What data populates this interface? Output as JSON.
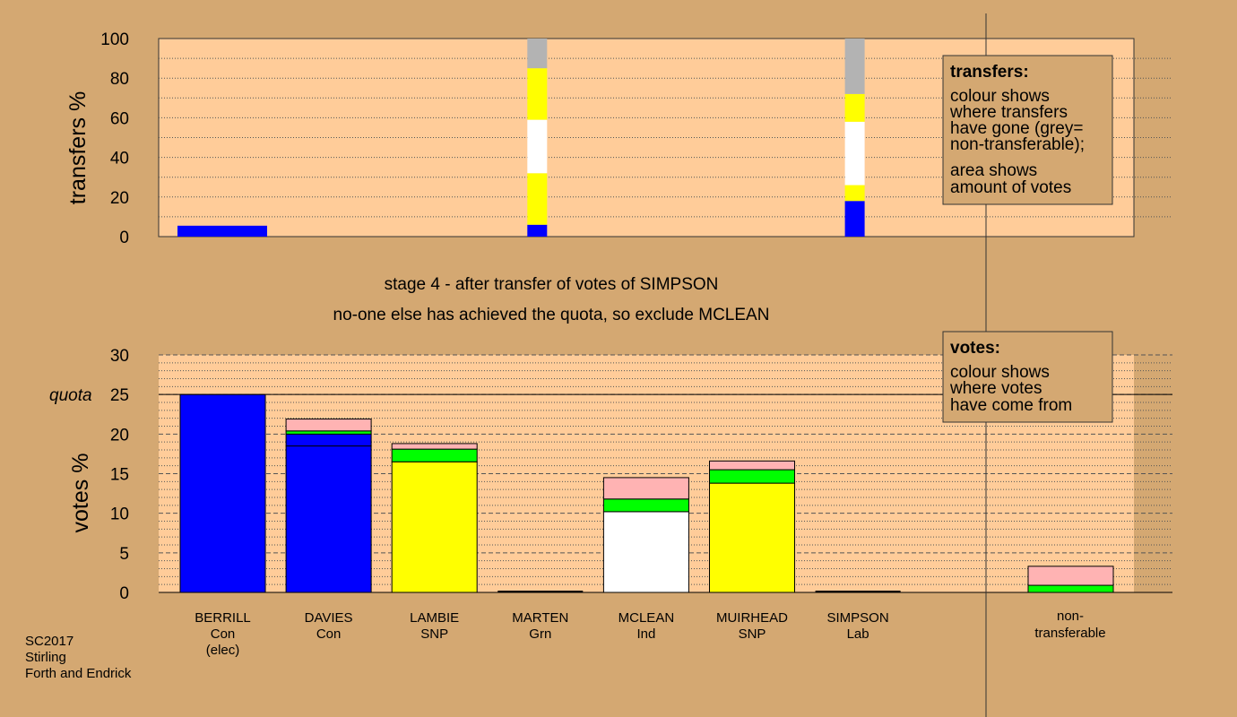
{
  "colors": {
    "background": "#d4a872",
    "plot": "#ffcc99",
    "Con": "#0000ff",
    "SNP": "#ffff00",
    "Ind": "#ffffff",
    "Lab": "#ffb3b3",
    "Grn": "#00ff00",
    "nontransferable": "#b3b3b3"
  },
  "messages": {
    "stage": "stage 4 - after transfer of votes of SIMPSON",
    "action": "no-one else has achieved the quota, so exclude MCLEAN"
  },
  "footer": {
    "line1": "SC2017",
    "line2": "Stirling",
    "line3": "Forth and Endrick"
  },
  "legends": {
    "transfers": {
      "title": "transfers:",
      "lines": [
        "colour shows",
        "where transfers",
        "have gone (grey=",
        "non-transferable);",
        "area shows",
        "amount of votes"
      ]
    },
    "votes": {
      "title": "votes:",
      "lines": [
        "colour shows",
        "where votes",
        "have come from"
      ]
    }
  },
  "chart_data": [
    {
      "type": "bar",
      "stacked": true,
      "ylabel": "transfers %",
      "ylim": [
        0,
        100
      ],
      "yticks": [
        "0",
        "20",
        "40",
        "60",
        "80",
        "100"
      ],
      "categories": [
        "BERRILL",
        "DAVIES",
        "LAMBIE",
        "MARTEN",
        "MCLEAN",
        "MUIRHEAD",
        "SIMPSON"
      ],
      "bars": [
        {
          "candidate": "BERRILL",
          "width": 5,
          "segments": [
            {
              "source": "Con",
              "value": 5.5
            }
          ]
        },
        {
          "candidate": "MARTEN",
          "width": 1,
          "segments": [
            {
              "source": "Con",
              "value": 6
            },
            {
              "source": "SNP",
              "value": 26
            },
            {
              "source": "Ind",
              "value": 27
            },
            {
              "source": "SNP",
              "value": 26
            },
            {
              "source": "nontransferable",
              "value": 15
            }
          ]
        },
        {
          "candidate": "SIMPSON",
          "width": 1,
          "segments": [
            {
              "source": "Con",
              "value": 18
            },
            {
              "source": "SNP",
              "value": 8
            },
            {
              "source": "Ind",
              "value": 32
            },
            {
              "source": "SNP",
              "value": 14
            },
            {
              "source": "nontransferable",
              "value": 28
            }
          ]
        }
      ]
    },
    {
      "type": "bar",
      "stacked": true,
      "ylabel": "votes %",
      "ylim": [
        0,
        30
      ],
      "yticks": [
        "0",
        "5",
        "10",
        "15",
        "20",
        "25",
        "30"
      ],
      "quota": 25,
      "quota_label": "quota",
      "candidates": [
        {
          "name": "BERRILL",
          "party": "Con",
          "note": "(elec)",
          "segments": [
            {
              "source": "Con",
              "value": 25
            }
          ]
        },
        {
          "name": "DAVIES",
          "party": "Con",
          "note": "",
          "segments": [
            {
              "source": "Con",
              "value": 18.5
            },
            {
              "source": "Con",
              "value": 1.5
            },
            {
              "source": "Grn",
              "value": 0.4
            },
            {
              "source": "Lab",
              "value": 1.5
            }
          ]
        },
        {
          "name": "LAMBIE",
          "party": "SNP",
          "note": "",
          "segments": [
            {
              "source": "SNP",
              "value": 16.5
            },
            {
              "source": "Grn",
              "value": 1.6
            },
            {
              "source": "Lab",
              "value": 0.7
            }
          ]
        },
        {
          "name": "MARTEN",
          "party": "Grn",
          "note": "",
          "segments": [
            {
              "source": "Grn",
              "value": 0
            }
          ]
        },
        {
          "name": "MCLEAN",
          "party": "Ind",
          "note": "",
          "segments": [
            {
              "source": "Ind",
              "value": 10.2
            },
            {
              "source": "Grn",
              "value": 1.6
            },
            {
              "source": "Lab",
              "value": 2.7
            }
          ]
        },
        {
          "name": "MUIRHEAD",
          "party": "SNP",
          "note": "",
          "segments": [
            {
              "source": "SNP",
              "value": 13.8
            },
            {
              "source": "Grn",
              "value": 1.7
            },
            {
              "source": "Lab",
              "value": 1.1
            }
          ]
        },
        {
          "name": "SIMPSON",
          "party": "Lab",
          "note": "",
          "segments": [
            {
              "source": "Lab",
              "value": 0
            }
          ]
        }
      ],
      "nontransferable": {
        "line1": "non-",
        "line2": "transferable",
        "segments": [
          {
            "source": "Grn",
            "value": 0.9
          },
          {
            "source": "Lab",
            "value": 2.4
          }
        ]
      }
    }
  ]
}
